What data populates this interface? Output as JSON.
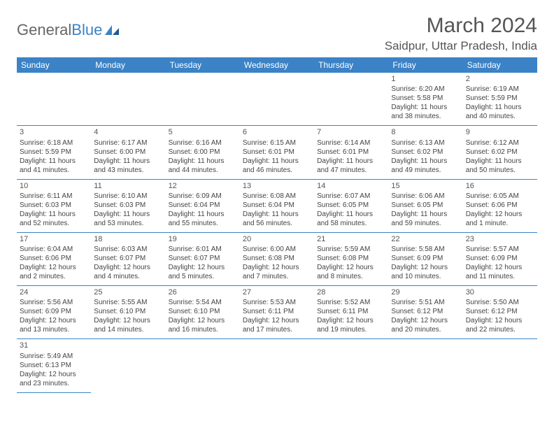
{
  "branding": {
    "logo_part1": "General",
    "logo_part2": "Blue",
    "logo_color1": "#666666",
    "logo_color2": "#3b82c7"
  },
  "header": {
    "month_title": "March 2024",
    "location": "Saidpur, Uttar Pradesh, India"
  },
  "styling": {
    "header_bg": "#3b82c7",
    "header_text": "#ffffff",
    "cell_border": "#3b82c7",
    "text_color": "#444444",
    "title_color": "#555555",
    "background": "#ffffff",
    "title_fontsize": 30,
    "location_fontsize": 17,
    "day_header_fontsize": 12,
    "cell_fontsize": 10
  },
  "day_headers": [
    "Sunday",
    "Monday",
    "Tuesday",
    "Wednesday",
    "Thursday",
    "Friday",
    "Saturday"
  ],
  "weeks": [
    [
      null,
      null,
      null,
      null,
      null,
      {
        "n": "1",
        "sr": "Sunrise: 6:20 AM",
        "ss": "Sunset: 5:58 PM",
        "d1": "Daylight: 11 hours",
        "d2": "and 38 minutes."
      },
      {
        "n": "2",
        "sr": "Sunrise: 6:19 AM",
        "ss": "Sunset: 5:59 PM",
        "d1": "Daylight: 11 hours",
        "d2": "and 40 minutes."
      }
    ],
    [
      {
        "n": "3",
        "sr": "Sunrise: 6:18 AM",
        "ss": "Sunset: 5:59 PM",
        "d1": "Daylight: 11 hours",
        "d2": "and 41 minutes."
      },
      {
        "n": "4",
        "sr": "Sunrise: 6:17 AM",
        "ss": "Sunset: 6:00 PM",
        "d1": "Daylight: 11 hours",
        "d2": "and 43 minutes."
      },
      {
        "n": "5",
        "sr": "Sunrise: 6:16 AM",
        "ss": "Sunset: 6:00 PM",
        "d1": "Daylight: 11 hours",
        "d2": "and 44 minutes."
      },
      {
        "n": "6",
        "sr": "Sunrise: 6:15 AM",
        "ss": "Sunset: 6:01 PM",
        "d1": "Daylight: 11 hours",
        "d2": "and 46 minutes."
      },
      {
        "n": "7",
        "sr": "Sunrise: 6:14 AM",
        "ss": "Sunset: 6:01 PM",
        "d1": "Daylight: 11 hours",
        "d2": "and 47 minutes."
      },
      {
        "n": "8",
        "sr": "Sunrise: 6:13 AM",
        "ss": "Sunset: 6:02 PM",
        "d1": "Daylight: 11 hours",
        "d2": "and 49 minutes."
      },
      {
        "n": "9",
        "sr": "Sunrise: 6:12 AM",
        "ss": "Sunset: 6:02 PM",
        "d1": "Daylight: 11 hours",
        "d2": "and 50 minutes."
      }
    ],
    [
      {
        "n": "10",
        "sr": "Sunrise: 6:11 AM",
        "ss": "Sunset: 6:03 PM",
        "d1": "Daylight: 11 hours",
        "d2": "and 52 minutes."
      },
      {
        "n": "11",
        "sr": "Sunrise: 6:10 AM",
        "ss": "Sunset: 6:03 PM",
        "d1": "Daylight: 11 hours",
        "d2": "and 53 minutes."
      },
      {
        "n": "12",
        "sr": "Sunrise: 6:09 AM",
        "ss": "Sunset: 6:04 PM",
        "d1": "Daylight: 11 hours",
        "d2": "and 55 minutes."
      },
      {
        "n": "13",
        "sr": "Sunrise: 6:08 AM",
        "ss": "Sunset: 6:04 PM",
        "d1": "Daylight: 11 hours",
        "d2": "and 56 minutes."
      },
      {
        "n": "14",
        "sr": "Sunrise: 6:07 AM",
        "ss": "Sunset: 6:05 PM",
        "d1": "Daylight: 11 hours",
        "d2": "and 58 minutes."
      },
      {
        "n": "15",
        "sr": "Sunrise: 6:06 AM",
        "ss": "Sunset: 6:05 PM",
        "d1": "Daylight: 11 hours",
        "d2": "and 59 minutes."
      },
      {
        "n": "16",
        "sr": "Sunrise: 6:05 AM",
        "ss": "Sunset: 6:06 PM",
        "d1": "Daylight: 12 hours",
        "d2": "and 1 minute."
      }
    ],
    [
      {
        "n": "17",
        "sr": "Sunrise: 6:04 AM",
        "ss": "Sunset: 6:06 PM",
        "d1": "Daylight: 12 hours",
        "d2": "and 2 minutes."
      },
      {
        "n": "18",
        "sr": "Sunrise: 6:03 AM",
        "ss": "Sunset: 6:07 PM",
        "d1": "Daylight: 12 hours",
        "d2": "and 4 minutes."
      },
      {
        "n": "19",
        "sr": "Sunrise: 6:01 AM",
        "ss": "Sunset: 6:07 PM",
        "d1": "Daylight: 12 hours",
        "d2": "and 5 minutes."
      },
      {
        "n": "20",
        "sr": "Sunrise: 6:00 AM",
        "ss": "Sunset: 6:08 PM",
        "d1": "Daylight: 12 hours",
        "d2": "and 7 minutes."
      },
      {
        "n": "21",
        "sr": "Sunrise: 5:59 AM",
        "ss": "Sunset: 6:08 PM",
        "d1": "Daylight: 12 hours",
        "d2": "and 8 minutes."
      },
      {
        "n": "22",
        "sr": "Sunrise: 5:58 AM",
        "ss": "Sunset: 6:09 PM",
        "d1": "Daylight: 12 hours",
        "d2": "and 10 minutes."
      },
      {
        "n": "23",
        "sr": "Sunrise: 5:57 AM",
        "ss": "Sunset: 6:09 PM",
        "d1": "Daylight: 12 hours",
        "d2": "and 11 minutes."
      }
    ],
    [
      {
        "n": "24",
        "sr": "Sunrise: 5:56 AM",
        "ss": "Sunset: 6:09 PM",
        "d1": "Daylight: 12 hours",
        "d2": "and 13 minutes."
      },
      {
        "n": "25",
        "sr": "Sunrise: 5:55 AM",
        "ss": "Sunset: 6:10 PM",
        "d1": "Daylight: 12 hours",
        "d2": "and 14 minutes."
      },
      {
        "n": "26",
        "sr": "Sunrise: 5:54 AM",
        "ss": "Sunset: 6:10 PM",
        "d1": "Daylight: 12 hours",
        "d2": "and 16 minutes."
      },
      {
        "n": "27",
        "sr": "Sunrise: 5:53 AM",
        "ss": "Sunset: 6:11 PM",
        "d1": "Daylight: 12 hours",
        "d2": "and 17 minutes."
      },
      {
        "n": "28",
        "sr": "Sunrise: 5:52 AM",
        "ss": "Sunset: 6:11 PM",
        "d1": "Daylight: 12 hours",
        "d2": "and 19 minutes."
      },
      {
        "n": "29",
        "sr": "Sunrise: 5:51 AM",
        "ss": "Sunset: 6:12 PM",
        "d1": "Daylight: 12 hours",
        "d2": "and 20 minutes."
      },
      {
        "n": "30",
        "sr": "Sunrise: 5:50 AM",
        "ss": "Sunset: 6:12 PM",
        "d1": "Daylight: 12 hours",
        "d2": "and 22 minutes."
      }
    ],
    [
      {
        "n": "31",
        "sr": "Sunrise: 5:49 AM",
        "ss": "Sunset: 6:13 PM",
        "d1": "Daylight: 12 hours",
        "d2": "and 23 minutes."
      },
      null,
      null,
      null,
      null,
      null,
      null
    ]
  ]
}
